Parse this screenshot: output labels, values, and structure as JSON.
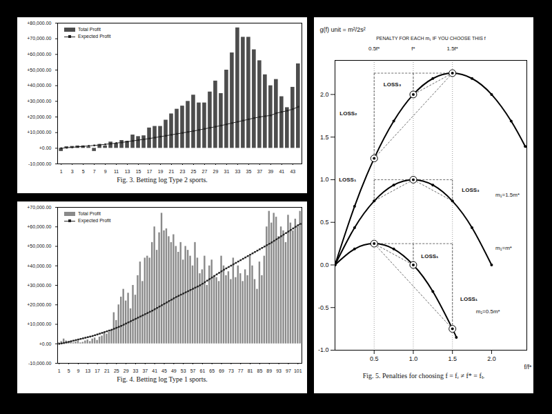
{
  "chart_data": [
    {
      "type": "bar",
      "caption": "Fig. 3. Betting log Type 2 sports.",
      "categories": [
        "1",
        null,
        "3",
        null,
        "5",
        null,
        "7",
        null,
        "9",
        null,
        "11",
        null,
        "13",
        null,
        "15",
        null,
        "17",
        null,
        "19",
        null,
        "21",
        null,
        "23",
        null,
        "25",
        null,
        "27",
        null,
        "29",
        null,
        "31",
        null,
        "33",
        null,
        "35",
        null,
        "37",
        null,
        "39",
        null,
        "41",
        null,
        "43",
        null
      ],
      "series": [
        {
          "name": "Total Profit",
          "type": "bar",
          "color": "#4d4d4d",
          "values": [
            -2000,
            1000,
            1200,
            1500,
            1500,
            800,
            -2000,
            2500,
            1500,
            4000,
            3000,
            5000,
            4500,
            8500,
            7500,
            8000,
            13000,
            14000,
            14000,
            18000,
            22000,
            25000,
            27000,
            30000,
            34000,
            29000,
            29000,
            36000,
            43000,
            35000,
            50000,
            61000,
            77000,
            71000,
            71000,
            63000,
            56000,
            47000,
            40000,
            44000,
            33000,
            26000,
            39000,
            54000
          ]
        },
        {
          "name": "Expected Profit",
          "type": "line",
          "color": "#222222",
          "marker": "square",
          "values": [
            0,
            300,
            600,
            900,
            1200,
            1500,
            1800,
            2100,
            2500,
            2900,
            3300,
            3700,
            4200,
            4700,
            5200,
            5700,
            6200,
            6800,
            7400,
            8000,
            8600,
            9200,
            9800,
            10400,
            11000,
            11700,
            12400,
            13100,
            13800,
            14500,
            15300,
            16100,
            16900,
            17700,
            18500,
            19300,
            20000,
            20500,
            21000,
            22400,
            23200,
            24000,
            25000,
            26500
          ]
        }
      ],
      "ylim": [
        -10000,
        80000
      ],
      "yticks": [
        {
          "value": -10000,
          "label": "-10,000.00"
        },
        {
          "value": 0,
          "label": "+0.00"
        },
        {
          "value": 10000,
          "label": "+10,000.00"
        },
        {
          "value": 20000,
          "label": "+20,000.00"
        },
        {
          "value": 30000,
          "label": "+30,000.00"
        },
        {
          "value": 40000,
          "label": "+40,000.00"
        },
        {
          "value": 50000,
          "label": "+50,000.00"
        },
        {
          "value": 60000,
          "label": "+60,000.00"
        },
        {
          "value": 70000,
          "label": "+70,000.00"
        },
        {
          "value": 80000,
          "label": "+80,000.00"
        }
      ],
      "legend": "top-left",
      "grid": false
    },
    {
      "type": "bar",
      "caption": "Fig. 4. Betting log Type 1 sports.",
      "categories": [
        "1",
        null,
        null,
        null,
        "5",
        null,
        null,
        null,
        "9",
        null,
        null,
        null,
        "13",
        null,
        null,
        null,
        "17",
        null,
        null,
        null,
        "21",
        null,
        null,
        null,
        "25",
        null,
        null,
        null,
        "29",
        null,
        null,
        null,
        "33",
        null,
        null,
        null,
        "37",
        null,
        null,
        null,
        "41",
        null,
        null,
        null,
        "45",
        null,
        null,
        null,
        "49",
        null,
        null,
        null,
        "53",
        null,
        null,
        null,
        "57",
        null,
        null,
        null,
        "61",
        null,
        null,
        null,
        "65",
        null,
        null,
        null,
        "69",
        null,
        null,
        null,
        "73",
        null,
        null,
        null,
        "77",
        null,
        null,
        null,
        "81",
        null,
        null,
        null,
        "85",
        null,
        null,
        null,
        "89",
        null,
        null,
        null,
        "93",
        null,
        null,
        null,
        "97",
        null,
        null,
        null,
        "101",
        null
      ],
      "series": [
        {
          "name": "Total Profit",
          "type": "bar",
          "color": "#8a8a8a",
          "values": [
            500,
            1200,
            2500,
            1500,
            800,
            1200,
            600,
            1000,
            1500,
            500,
            800,
            1500,
            2000,
            1200,
            2500,
            3000,
            1800,
            3500,
            4000,
            5500,
            5000,
            6000,
            7000,
            16000,
            12000,
            20000,
            24000,
            28000,
            22000,
            26000,
            18000,
            30000,
            25000,
            35000,
            42000,
            32000,
            44000,
            45000,
            44000,
            52000,
            60000,
            48000,
            57000,
            67000,
            58000,
            59000,
            55000,
            52000,
            56000,
            50000,
            47000,
            52000,
            43000,
            50000,
            48000,
            45000,
            40000,
            52000,
            44000,
            36000,
            38000,
            45000,
            30000,
            40000,
            43000,
            35000,
            34000,
            32000,
            45000,
            40000,
            35000,
            37000,
            33000,
            44000,
            34000,
            40000,
            36000,
            32000,
            38000,
            35000,
            45000,
            40000,
            33000,
            28000,
            42000,
            35000,
            45000,
            60000,
            68000,
            62000,
            67000,
            65000,
            55000,
            60000,
            58000,
            52000,
            66000,
            62000,
            58000,
            64000,
            60000,
            68000
          ]
        },
        {
          "name": "Expected Profit",
          "type": "line",
          "color": "#222222",
          "marker": "square",
          "values": [
            0,
            200,
            400,
            700,
            1000,
            1300,
            1600,
            1900,
            2200,
            2500,
            2800,
            3100,
            3400,
            3700,
            4000,
            4400,
            4800,
            5200,
            5600,
            6000,
            6400,
            6800,
            7200,
            7700,
            8200,
            8700,
            9200,
            9800,
            10400,
            11000,
            11600,
            12200,
            12800,
            13400,
            14000,
            14600,
            15200,
            15800,
            16400,
            17000,
            17700,
            18400,
            19100,
            19800,
            20500,
            21200,
            21900,
            22600,
            23300,
            24000,
            24600,
            25200,
            25800,
            26400,
            27000,
            27600,
            28200,
            28800,
            29400,
            30000,
            30800,
            31600,
            32400,
            33200,
            34000,
            34800,
            35600,
            36400,
            37200,
            38000,
            38700,
            39400,
            40100,
            40800,
            41500,
            42200,
            42900,
            43600,
            44300,
            45000,
            45700,
            46400,
            47100,
            47800,
            48500,
            49200,
            49900,
            50600,
            51300,
            52000,
            52800,
            53600,
            54400,
            55200,
            56000,
            56800,
            57600,
            58400,
            59200,
            60000,
            60800,
            61500
          ]
        }
      ],
      "ylim": [
        -10000,
        70000
      ],
      "yticks": [
        {
          "value": -10000,
          "label": "-10,000.00"
        },
        {
          "value": 0,
          "label": "+0.00"
        },
        {
          "value": 10000,
          "label": "+10,000.00"
        },
        {
          "value": 20000,
          "label": "+20,000.00"
        },
        {
          "value": 30000,
          "label": "+30,000.00"
        },
        {
          "value": 40000,
          "label": "+40,000.00"
        },
        {
          "value": 50000,
          "label": "+50,000.00"
        },
        {
          "value": 60000,
          "label": "+60,000.00"
        },
        {
          "value": 70000,
          "label": "+70,000.00"
        }
      ],
      "legend": "top-left",
      "grid": false
    },
    {
      "type": "line",
      "title": "g(f) unit = m²/2s²",
      "subtitle": "PENALTY FOR EACH m₁ IF YOU CHOOSE THIS f",
      "xlabel": "f/f*",
      "caption": "Fig. 5. Penalties for choosing f = fᵣ ≠ f* = fₜ.",
      "choices": [
        {
          "value": 0.5,
          "label": "0.5f*"
        },
        {
          "value": 1,
          "label": "f*"
        },
        {
          "value": 1.5,
          "label": "1.5f*"
        }
      ],
      "series": [
        {
          "name": "m₁=1.5m*",
          "color": "#000000",
          "marker": "circle",
          "label_at": [
            2.05,
            0.82
          ],
          "x": [
            0,
            0.25,
            0.5,
            0.75,
            1,
            1.25,
            1.5,
            1.75,
            2,
            2.25,
            2.43
          ],
          "values": [
            0,
            0.6875,
            1.25,
            1.6875,
            2,
            2.1875,
            2.25,
            2.1875,
            2,
            1.6875,
            1.39
          ]
        },
        {
          "name": "m₁=m*",
          "color": "#000000",
          "marker": "circle",
          "label_at": [
            2.05,
            0.2
          ],
          "x": [
            0,
            0.25,
            0.5,
            0.75,
            1,
            1.25,
            1.5,
            1.75,
            2
          ],
          "values": [
            0,
            0.4375,
            0.75,
            0.9375,
            1,
            0.9375,
            0.75,
            0.4375,
            0
          ]
        },
        {
          "name": "m₁=0.5m*",
          "color": "#000000",
          "marker": "circle",
          "label_at": [
            1.8,
            -0.55
          ],
          "x": [
            0,
            0.25,
            0.5,
            0.75,
            1,
            1.25,
            1.5,
            1.55
          ],
          "values": [
            0,
            0.1875,
            0.25,
            0.1875,
            0,
            -0.3125,
            -0.75,
            -0.85
          ]
        }
      ],
      "circled": [
        {
          "x": 0.5,
          "y": 1.25
        },
        {
          "x": 1,
          "y": 2
        },
        {
          "x": 1.5,
          "y": 2.25
        },
        {
          "x": 1,
          "y": 1
        },
        {
          "x": 0.5,
          "y": 0.25
        },
        {
          "x": 1,
          "y": 0
        },
        {
          "x": 1.5,
          "y": -0.75
        }
      ],
      "loss_lines": [
        {
          "x1": 0.5,
          "y1": 2.25,
          "x2": 1.5,
          "y2": 2.25
        },
        {
          "x1": 0.5,
          "y1": 2.25,
          "x2": 0.5,
          "y2": 1.25
        },
        {
          "x1": 1,
          "y1": 2.25,
          "x2": 1,
          "y2": 2
        },
        {
          "x1": 1.5,
          "y1": 2.25,
          "x2": 1,
          "y2": 2
        },
        {
          "x1": 1.5,
          "y1": 2.25,
          "x2": 0.5,
          "y2": 1.25
        },
        {
          "x1": 0.5,
          "y1": 1,
          "x2": 1.5,
          "y2": 1
        },
        {
          "x1": 0.5,
          "y1": 1,
          "x2": 0.5,
          "y2": 0.75
        },
        {
          "x1": 1.5,
          "y1": 1,
          "x2": 1.5,
          "y2": 0.75
        },
        {
          "x1": 1,
          "y1": 1,
          "x2": 0.5,
          "y2": 0.75
        },
        {
          "x1": 1,
          "y1": 1,
          "x2": 1.5,
          "y2": 0.75
        },
        {
          "x1": 0.5,
          "y1": 0.25,
          "x2": 1.5,
          "y2": 0.25
        },
        {
          "x1": 1,
          "y1": 0.25,
          "x2": 1,
          "y2": 0
        },
        {
          "x1": 1.5,
          "y1": 0.25,
          "x2": 1.5,
          "y2": -0.75
        },
        {
          "x1": 0.5,
          "y1": 0.25,
          "x2": 1,
          "y2": 0
        },
        {
          "x1": 0.5,
          "y1": 0.25,
          "x2": 1.5,
          "y2": -0.75
        }
      ],
      "annotations": [
        {
          "text": "LOSS₃",
          "x": 0.62,
          "y": 2.12
        },
        {
          "text": "LOSS₂",
          "x": 0.06,
          "y": 1.78
        },
        {
          "text": "LOSS₁",
          "x": 0.05,
          "y": 1.0
        },
        {
          "text": "LOSS₃",
          "x": 1.62,
          "y": 0.88
        },
        {
          "text": "LOSS₁",
          "x": 1.1,
          "y": 0.1
        },
        {
          "text": "LOSS₁",
          "x": 1.6,
          "y": -0.4
        }
      ],
      "xlim": [
        0,
        2.45
      ],
      "xticks": [
        0.5,
        {
          "value": 1,
          "label": "1.0"
        },
        1.5,
        {
          "value": 2,
          "label": "2.0"
        }
      ],
      "ylim": [
        -1,
        2.4
      ],
      "yticks": [
        {
          "value": -1,
          "label": "-1.0"
        },
        -0.5,
        {
          "value": 0,
          "label": "0.0"
        },
        0.5,
        {
          "value": 1,
          "label": "1.0"
        },
        1.5,
        {
          "value": 2,
          "label": "2.0"
        }
      ],
      "grid": false
    }
  ]
}
